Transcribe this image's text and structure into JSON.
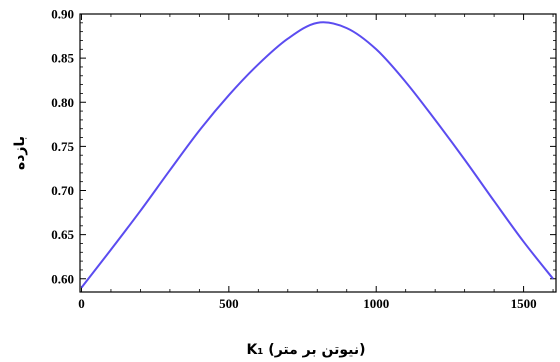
{
  "chart_data": {
    "type": "line",
    "title": "",
    "xlabel": "K₁ (نیوتن بر متر)",
    "ylabel": "بازده",
    "xlim": [
      -5,
      1610
    ],
    "ylim": [
      0.585,
      0.9
    ],
    "x_ticks": [
      0,
      500,
      1000,
      1500
    ],
    "x_tick_labels": [
      "0",
      "500",
      "1000",
      "1500"
    ],
    "y_ticks": [
      0.6,
      0.65,
      0.7,
      0.75,
      0.8,
      0.85,
      0.9
    ],
    "y_tick_labels": [
      "0.60",
      "0.65",
      "0.70",
      "0.75",
      "0.80",
      "0.85",
      "0.90"
    ],
    "grid": false,
    "series": [
      {
        "color": "#5b4cf0",
        "x": [
          0,
          100,
          200,
          300,
          400,
          500,
          600,
          700,
          800,
          900,
          1000,
          1100,
          1200,
          1300,
          1400,
          1500,
          1600
        ],
        "y": [
          0.59,
          0.633,
          0.677,
          0.723,
          0.768,
          0.808,
          0.843,
          0.872,
          0.89,
          0.884,
          0.86,
          0.823,
          0.78,
          0.735,
          0.688,
          0.642,
          0.6
        ]
      }
    ]
  }
}
